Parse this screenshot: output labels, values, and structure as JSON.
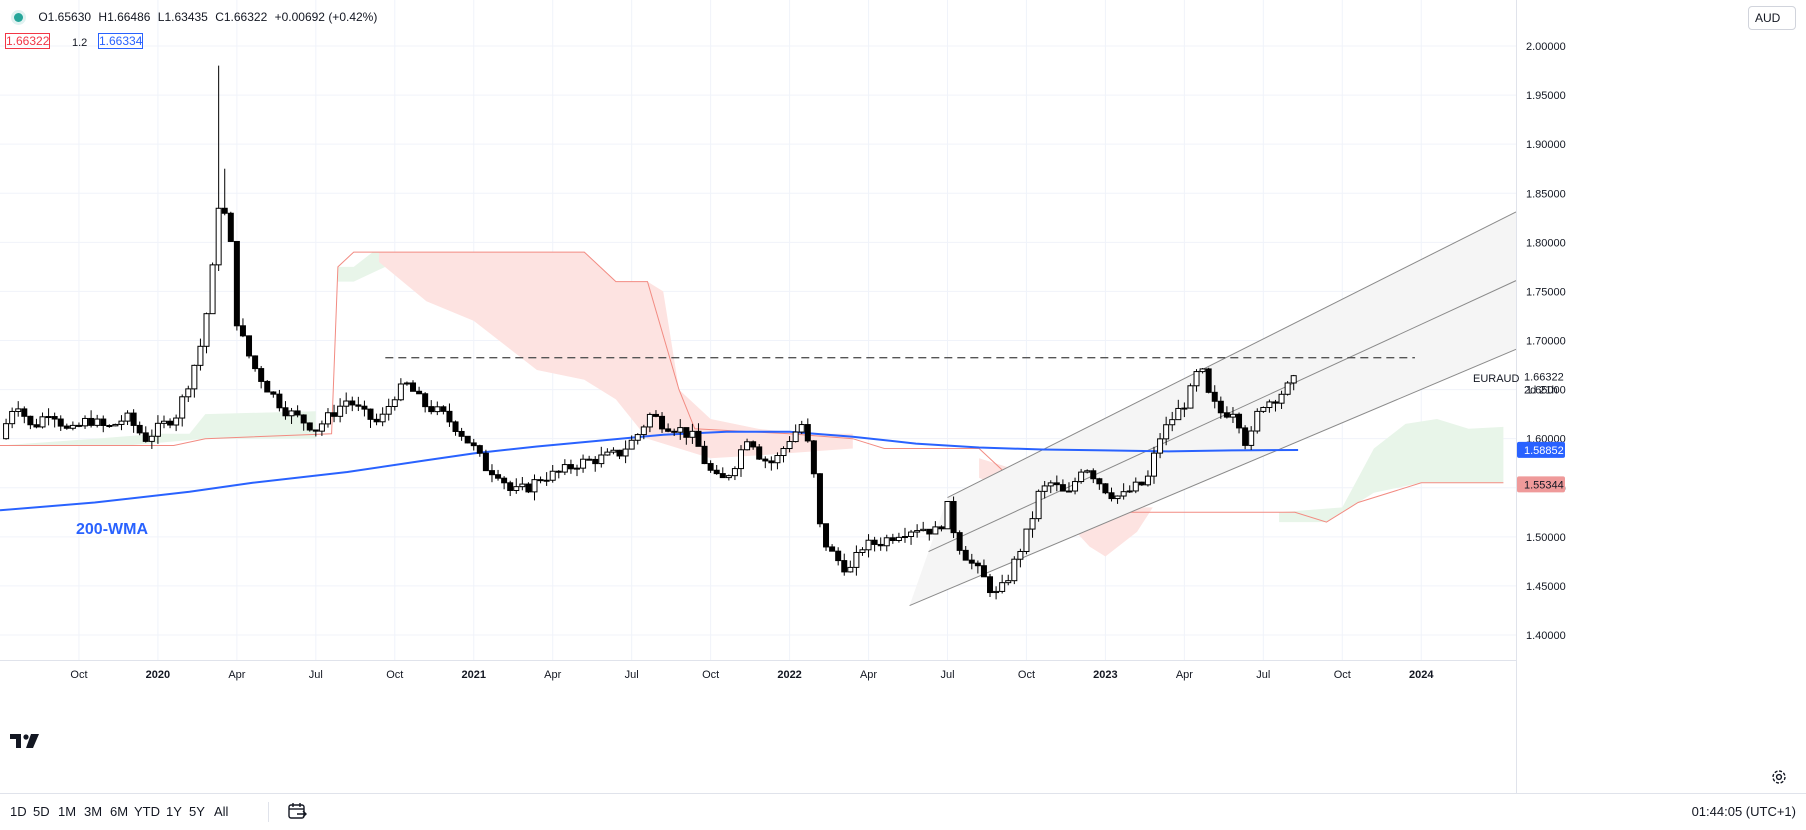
{
  "legend": {
    "open": "O1.65630",
    "high": "H1.66486",
    "low": "L1.63435",
    "close": "C1.66322",
    "change": "+0.00692 (+0.42%)"
  },
  "quote": {
    "sell": "1.66322",
    "spread": "1.2",
    "buy": "1.66334"
  },
  "currency_button": "AUD",
  "range_buttons": [
    "1D",
    "5D",
    "1M",
    "3M",
    "6M",
    "YTD",
    "1Y",
    "5Y",
    "All"
  ],
  "clock": "01:44:05 (UTC+1)",
  "colors": {
    "up_candle": "#ffffff",
    "down_candle": "#000000",
    "wma": "#2962ff",
    "cloud_bull": "#e8f5e9",
    "cloud_bear": "#fde3e1",
    "kumo_line": "#f28b82",
    "current_price": "#ffffff",
    "wma_label_bg": "#2962ff",
    "kumo_label_bg": "#ef9a9a"
  },
  "chart_data": {
    "type": "candlestick",
    "symbol": "EURAUD",
    "countdown": "2d 21h",
    "ylim": [
      1.36,
      2.04
    ],
    "y_ticks": [
      "2.00000",
      "1.95000",
      "1.90000",
      "1.85000",
      "1.80000",
      "1.75000",
      "1.70000",
      "1.65000",
      "1.60000",
      "1.55000",
      "1.50000",
      "1.45000",
      "1.40000"
    ],
    "y_tick_values": [
      2.0,
      1.95,
      1.9,
      1.85,
      1.8,
      1.75,
      1.7,
      1.65,
      1.6,
      1.55,
      1.5,
      1.45,
      1.4
    ],
    "x_range": [
      2019.5,
      2024.3
    ],
    "x_ticks": [
      {
        "label": "Oct",
        "t": 2019.75
      },
      {
        "label": "2020",
        "t": 2020.0
      },
      {
        "label": "Apr",
        "t": 2020.25
      },
      {
        "label": "Jul",
        "t": 2020.5
      },
      {
        "label": "Oct",
        "t": 2020.75
      },
      {
        "label": "2021",
        "t": 2021.0
      },
      {
        "label": "Apr",
        "t": 2021.25
      },
      {
        "label": "Jul",
        "t": 2021.5
      },
      {
        "label": "Oct",
        "t": 2021.75
      },
      {
        "label": "2022",
        "t": 2022.0
      },
      {
        "label": "Apr",
        "t": 2022.25
      },
      {
        "label": "Jul",
        "t": 2022.5
      },
      {
        "label": "Oct",
        "t": 2022.75
      },
      {
        "label": "2023",
        "t": 2023.0
      },
      {
        "label": "Apr",
        "t": 2023.25
      },
      {
        "label": "Jul",
        "t": 2023.5
      },
      {
        "label": "Oct",
        "t": 2023.75
      },
      {
        "label": "2024",
        "t": 2024.0
      }
    ],
    "candle_path": [
      [
        2019.5,
        1.6
      ],
      [
        2019.55,
        1.64
      ],
      [
        2019.6,
        1.61
      ],
      [
        2019.66,
        1.63
      ],
      [
        2019.72,
        1.605
      ],
      [
        2019.78,
        1.62
      ],
      [
        2019.84,
        1.61
      ],
      [
        2019.9,
        1.622
      ],
      [
        2019.96,
        1.6
      ],
      [
        2020.0,
        1.61
      ],
      [
        2020.06,
        1.625
      ],
      [
        2020.1,
        1.66
      ],
      [
        2020.14,
        1.7
      ],
      [
        2020.17,
        1.76
      ],
      [
        2020.19,
        1.84
      ],
      [
        2020.21,
        1.83
      ],
      [
        2020.23,
        1.8
      ],
      [
        2020.25,
        1.72
      ],
      [
        2020.28,
        1.69
      ],
      [
        2020.31,
        1.67
      ],
      [
        2020.35,
        1.65
      ],
      [
        2020.4,
        1.63
      ],
      [
        2020.45,
        1.62
      ],
      [
        2020.5,
        1.61
      ],
      [
        2020.55,
        1.625
      ],
      [
        2020.6,
        1.64
      ],
      [
        2020.65,
        1.625
      ],
      [
        2020.7,
        1.615
      ],
      [
        2020.75,
        1.645
      ],
      [
        2020.79,
        1.655
      ],
      [
        2020.84,
        1.635
      ],
      [
        2020.9,
        1.625
      ],
      [
        2020.95,
        1.61
      ],
      [
        2021.0,
        1.59
      ],
      [
        2021.04,
        1.57
      ],
      [
        2021.08,
        1.565
      ],
      [
        2021.12,
        1.545
      ],
      [
        2021.17,
        1.55
      ],
      [
        2021.21,
        1.56
      ],
      [
        2021.27,
        1.565
      ],
      [
        2021.33,
        1.575
      ],
      [
        2021.4,
        1.58
      ],
      [
        2021.46,
        1.585
      ],
      [
        2021.51,
        1.6
      ],
      [
        2021.56,
        1.625
      ],
      [
        2021.6,
        1.615
      ],
      [
        2021.65,
        1.61
      ],
      [
        2021.7,
        1.6
      ],
      [
        2021.74,
        1.57
      ],
      [
        2021.78,
        1.555
      ],
      [
        2021.82,
        1.57
      ],
      [
        2021.87,
        1.605
      ],
      [
        2021.91,
        1.58
      ],
      [
        2021.95,
        1.575
      ],
      [
        2022.0,
        1.6
      ],
      [
        2022.04,
        1.615
      ],
      [
        2022.07,
        1.58
      ],
      [
        2022.1,
        1.5
      ],
      [
        2022.14,
        1.48
      ],
      [
        2022.19,
        1.465
      ],
      [
        2022.23,
        1.49
      ],
      [
        2022.29,
        1.495
      ],
      [
        2022.35,
        1.505
      ],
      [
        2022.41,
        1.51
      ],
      [
        2022.47,
        1.505
      ],
      [
        2022.5,
        1.53
      ],
      [
        2022.53,
        1.495
      ],
      [
        2022.57,
        1.475
      ],
      [
        2022.61,
        1.46
      ],
      [
        2022.65,
        1.44
      ],
      [
        2022.68,
        1.45
      ],
      [
        2022.72,
        1.48
      ],
      [
        2022.76,
        1.51
      ],
      [
        2022.79,
        1.545
      ],
      [
        2022.83,
        1.555
      ],
      [
        2022.88,
        1.54
      ],
      [
        2022.93,
        1.575
      ],
      [
        2022.97,
        1.56
      ],
      [
        2023.01,
        1.545
      ],
      [
        2023.05,
        1.54
      ],
      [
        2023.09,
        1.55
      ],
      [
        2023.13,
        1.555
      ],
      [
        2023.17,
        1.6
      ],
      [
        2023.21,
        1.62
      ],
      [
        2023.26,
        1.64
      ],
      [
        2023.3,
        1.675
      ],
      [
        2023.33,
        1.64
      ],
      [
        2023.37,
        1.625
      ],
      [
        2023.41,
        1.63
      ],
      [
        2023.45,
        1.59
      ],
      [
        2023.49,
        1.635
      ],
      [
        2023.53,
        1.64
      ],
      [
        2023.57,
        1.65
      ],
      [
        2023.61,
        1.663
      ]
    ],
    "wma": [
      [
        2019.5,
        1.527
      ],
      [
        2019.8,
        1.535
      ],
      [
        2020.1,
        1.546
      ],
      [
        2020.3,
        1.555
      ],
      [
        2020.6,
        1.566
      ],
      [
        2020.85,
        1.578
      ],
      [
        2021.0,
        1.585
      ],
      [
        2021.2,
        1.592
      ],
      [
        2021.4,
        1.598
      ],
      [
        2021.6,
        1.604
      ],
      [
        2021.8,
        1.607
      ],
      [
        2022.0,
        1.607
      ],
      [
        2022.2,
        1.602
      ],
      [
        2022.4,
        1.595
      ],
      [
        2022.6,
        1.591
      ],
      [
        2022.8,
        1.589
      ],
      [
        2023.0,
        1.588
      ],
      [
        2023.2,
        1.587
      ],
      [
        2023.4,
        1.588
      ],
      [
        2023.61,
        1.5885
      ]
    ],
    "cloud": [
      {
        "fill": "#e8f5e9",
        "points": [
          [
            2019.5,
            1.593
          ],
          [
            2019.8,
            1.6
          ],
          [
            2020.0,
            1.605
          ],
          [
            2020.1,
            1.605
          ],
          [
            2020.15,
            1.625
          ],
          [
            2020.5,
            1.628
          ],
          [
            2020.5,
            1.6
          ],
          [
            2020.15,
            1.6
          ],
          [
            2019.9,
            1.593
          ],
          [
            2019.5,
            1.593
          ]
        ]
      },
      {
        "fill": "#e8f5e9",
        "points": [
          [
            2020.57,
            1.775
          ],
          [
            2020.62,
            1.775
          ],
          [
            2020.68,
            1.79
          ],
          [
            2020.72,
            1.79
          ],
          [
            2020.72,
            1.775
          ],
          [
            2020.62,
            1.76
          ],
          [
            2020.57,
            1.76
          ]
        ]
      },
      {
        "fill": "#fde3e1",
        "points": [
          [
            2020.7,
            1.79
          ],
          [
            2021.35,
            1.79
          ],
          [
            2021.45,
            1.76
          ],
          [
            2021.55,
            1.76
          ],
          [
            2021.6,
            1.75
          ],
          [
            2021.65,
            1.65
          ],
          [
            2021.75,
            1.62
          ],
          [
            2021.9,
            1.61
          ],
          [
            2022.05,
            1.605
          ],
          [
            2022.2,
            1.605
          ],
          [
            2022.2,
            1.59
          ],
          [
            2021.9,
            1.583
          ],
          [
            2021.75,
            1.58
          ],
          [
            2021.55,
            1.6
          ],
          [
            2021.45,
            1.64
          ],
          [
            2021.35,
            1.66
          ],
          [
            2021.2,
            1.67
          ],
          [
            2021.0,
            1.72
          ],
          [
            2020.85,
            1.74
          ],
          [
            2020.7,
            1.78
          ]
        ]
      },
      {
        "fill": "#fde3e1",
        "points": [
          [
            2022.6,
            1.58
          ],
          [
            2022.75,
            1.565
          ],
          [
            2022.95,
            1.555
          ],
          [
            2023.1,
            1.53
          ],
          [
            2023.15,
            1.53
          ],
          [
            2023.1,
            1.505
          ],
          [
            2023.0,
            1.48
          ],
          [
            2022.95,
            1.49
          ],
          [
            2022.85,
            1.525
          ],
          [
            2022.75,
            1.54
          ],
          [
            2022.6,
            1.56
          ]
        ]
      },
      {
        "fill": "#e8f5e9",
        "points": [
          [
            2023.55,
            1.525
          ],
          [
            2023.75,
            1.53
          ],
          [
            2023.85,
            1.59
          ],
          [
            2023.95,
            1.615
          ],
          [
            2024.05,
            1.62
          ],
          [
            2024.15,
            1.61
          ],
          [
            2024.26,
            1.612
          ],
          [
            2024.26,
            1.555
          ],
          [
            2024.0,
            1.555
          ],
          [
            2023.85,
            1.545
          ],
          [
            2023.7,
            1.515
          ],
          [
            2023.55,
            1.515
          ]
        ]
      }
    ],
    "kumo_line": [
      [
        2019.5,
        1.593
      ],
      [
        2020.05,
        1.593
      ],
      [
        2020.15,
        1.6
      ],
      [
        2020.55,
        1.605
      ],
      [
        2020.57,
        1.775
      ],
      [
        2020.62,
        1.79
      ],
      [
        2020.72,
        1.79
      ],
      [
        2021.35,
        1.79
      ],
      [
        2021.45,
        1.76
      ],
      [
        2021.55,
        1.76
      ],
      [
        2021.65,
        1.65
      ],
      [
        2021.7,
        1.61
      ],
      [
        2022.0,
        1.605
      ],
      [
        2022.2,
        1.6
      ],
      [
        2022.3,
        1.59
      ],
      [
        2022.6,
        1.59
      ],
      [
        2022.7,
        1.56
      ],
      [
        2022.8,
        1.555
      ],
      [
        2022.9,
        1.54
      ],
      [
        2023.0,
        1.525
      ],
      [
        2023.4,
        1.525
      ],
      [
        2023.6,
        1.525
      ],
      [
        2023.7,
        1.515
      ],
      [
        2023.8,
        1.535
      ],
      [
        2024.0,
        1.555
      ],
      [
        2024.26,
        1.555
      ]
    ],
    "resistance": {
      "y": 1.6825,
      "x0": 2020.72,
      "x1": 2023.98
    },
    "channel": {
      "upper": [
        [
          2022.5,
          1.54
        ],
        [
          2024.3,
          1.831
        ]
      ],
      "middle": [
        [
          2022.44,
          1.485
        ],
        [
          2024.3,
          1.761
        ]
      ],
      "lower": [
        [
          2022.38,
          1.43
        ],
        [
          2024.3,
          1.691
        ]
      ],
      "band_top": [
        [
          2022.5,
          1.54
        ],
        [
          2024.3,
          1.831
        ]
      ],
      "band_bottom": [
        [
          2022.38,
          1.43
        ],
        [
          2024.3,
          1.691
        ]
      ]
    },
    "wma_label": "200-WMA",
    "price_labels": {
      "last": {
        "value": 1.66322,
        "text": "1.66322"
      },
      "wma": {
        "value": 1.58852,
        "text": "1.58852"
      },
      "kumo": {
        "value": 1.55344,
        "text": "1.55344"
      }
    }
  }
}
